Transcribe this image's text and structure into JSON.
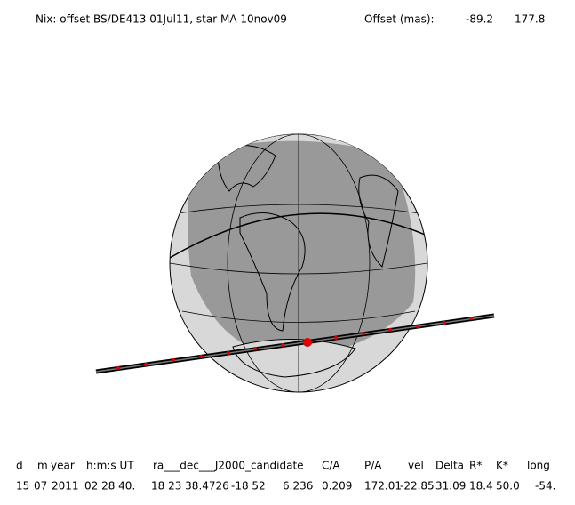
{
  "header": {
    "title": "Nix: offset BS/DE413 01Jul11, star MA 10nov09",
    "offset_label": "Offset (mas):",
    "offset_values": [
      "-89.2",
      "177.8"
    ]
  },
  "table": {
    "columns": [
      "d",
      "m",
      "year",
      "h:m:s UT",
      "ra___dec___J2000_candidate",
      "C/A",
      "P/A",
      "vel",
      "Delta",
      "R*",
      "K*",
      "long"
    ],
    "rows": [
      [
        "15",
        "07",
        "2011",
        "02 28 40.",
        "18 23 38.4726",
        "-18 52",
        "6.236",
        "0.209",
        "172.01",
        "-22.85",
        "31.09",
        "18.4",
        "50.0",
        "-54."
      ]
    ]
  }
}
